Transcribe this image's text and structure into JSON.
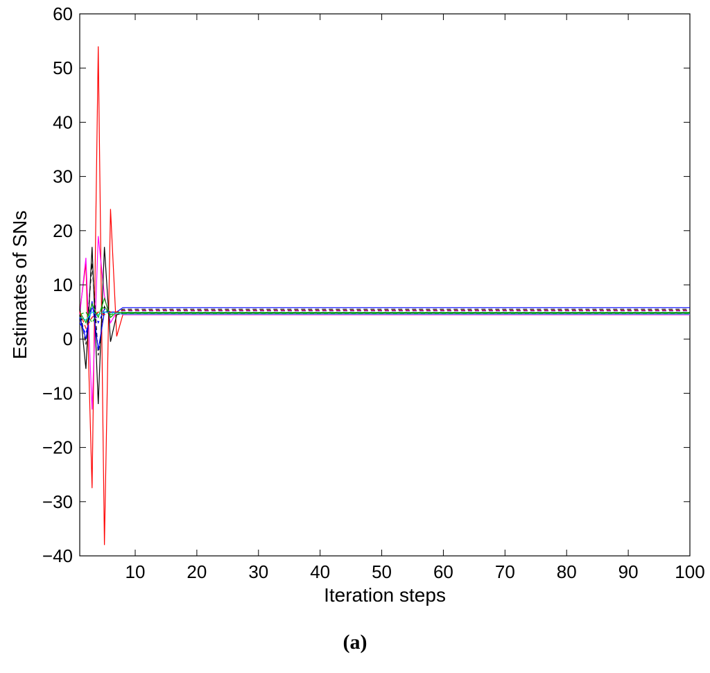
{
  "caption": "(a)",
  "chart_data": {
    "type": "line",
    "title": "",
    "xlabel": "Iteration steps",
    "ylabel": "Estimates of SNs",
    "xlim": [
      1,
      100
    ],
    "ylim": [
      -40,
      60
    ],
    "xticks": [
      10,
      20,
      30,
      40,
      50,
      60,
      70,
      80,
      90,
      100
    ],
    "yticks": [
      -40,
      -30,
      -20,
      -10,
      0,
      10,
      20,
      30,
      40,
      50,
      60
    ],
    "grid": false,
    "legend": "none",
    "series": [
      {
        "color": "#ff0000",
        "dash": "solid",
        "x": [
          1,
          2,
          3,
          4,
          5,
          6,
          7,
          8,
          100
        ],
        "y": [
          5,
          14,
          -27.5,
          54,
          -38,
          24,
          0.5,
          4.5,
          4.5
        ]
      },
      {
        "color": "#ff00ff",
        "dash": "solid",
        "x": [
          1,
          2,
          3,
          4,
          5,
          6,
          7,
          8,
          100
        ],
        "y": [
          4.5,
          15,
          -13,
          19,
          8,
          3,
          5,
          4.5,
          4.5
        ]
      },
      {
        "color": "#000000",
        "dash": "solid",
        "x": [
          1,
          2,
          3,
          4,
          5,
          6,
          7,
          8,
          100
        ],
        "y": [
          6,
          -5.5,
          17,
          -12,
          17,
          -0.5,
          4.5,
          4.8,
          4.8
        ]
      },
      {
        "color": "#000000",
        "dash": "dashed",
        "x": [
          1,
          2,
          3,
          4,
          5,
          6,
          7,
          8,
          100
        ],
        "y": [
          5.5,
          -1,
          14,
          -3,
          6,
          4,
          5,
          5.5,
          5.5
        ]
      },
      {
        "color": "#0000ff",
        "dash": "solid",
        "x": [
          1,
          2,
          3,
          4,
          5,
          6,
          7,
          8,
          100
        ],
        "y": [
          4,
          0,
          7,
          -2,
          5,
          5,
          5,
          5.8,
          5.8
        ]
      },
      {
        "color": "#0000ff",
        "dash": "dashed",
        "x": [
          1,
          2,
          3,
          4,
          5,
          6,
          7,
          8,
          100
        ],
        "y": [
          3,
          1,
          6,
          3,
          5.5,
          5,
          5,
          5.2,
          5.2
        ]
      },
      {
        "color": "#00aa00",
        "dash": "solid",
        "x": [
          1,
          2,
          3,
          4,
          5,
          6,
          7,
          8,
          100
        ],
        "y": [
          5,
          3,
          6.5,
          4,
          7.5,
          4,
          5,
          4.9,
          4.9
        ]
      },
      {
        "color": "#00aa00",
        "dash": "dashed",
        "x": [
          1,
          2,
          3,
          4,
          5,
          6,
          7,
          8,
          100
        ],
        "y": [
          4.5,
          5,
          3,
          5,
          6,
          4.5,
          4.8,
          4.7,
          4.7
        ]
      },
      {
        "color": "#00cccc",
        "dash": "solid",
        "x": [
          1,
          2,
          3,
          4,
          5,
          6,
          7,
          8,
          100
        ],
        "y": [
          4,
          3.5,
          5,
          4.5,
          5,
          4.8,
          4.8,
          4.6,
          4.6
        ]
      },
      {
        "color": "#ff0000",
        "dash": "dashed",
        "x": [
          1,
          2,
          3,
          4,
          5,
          6,
          7,
          8,
          100
        ],
        "y": [
          5,
          2,
          4,
          5,
          4.5,
          5,
          5,
          5.3,
          5.3
        ]
      }
    ]
  }
}
